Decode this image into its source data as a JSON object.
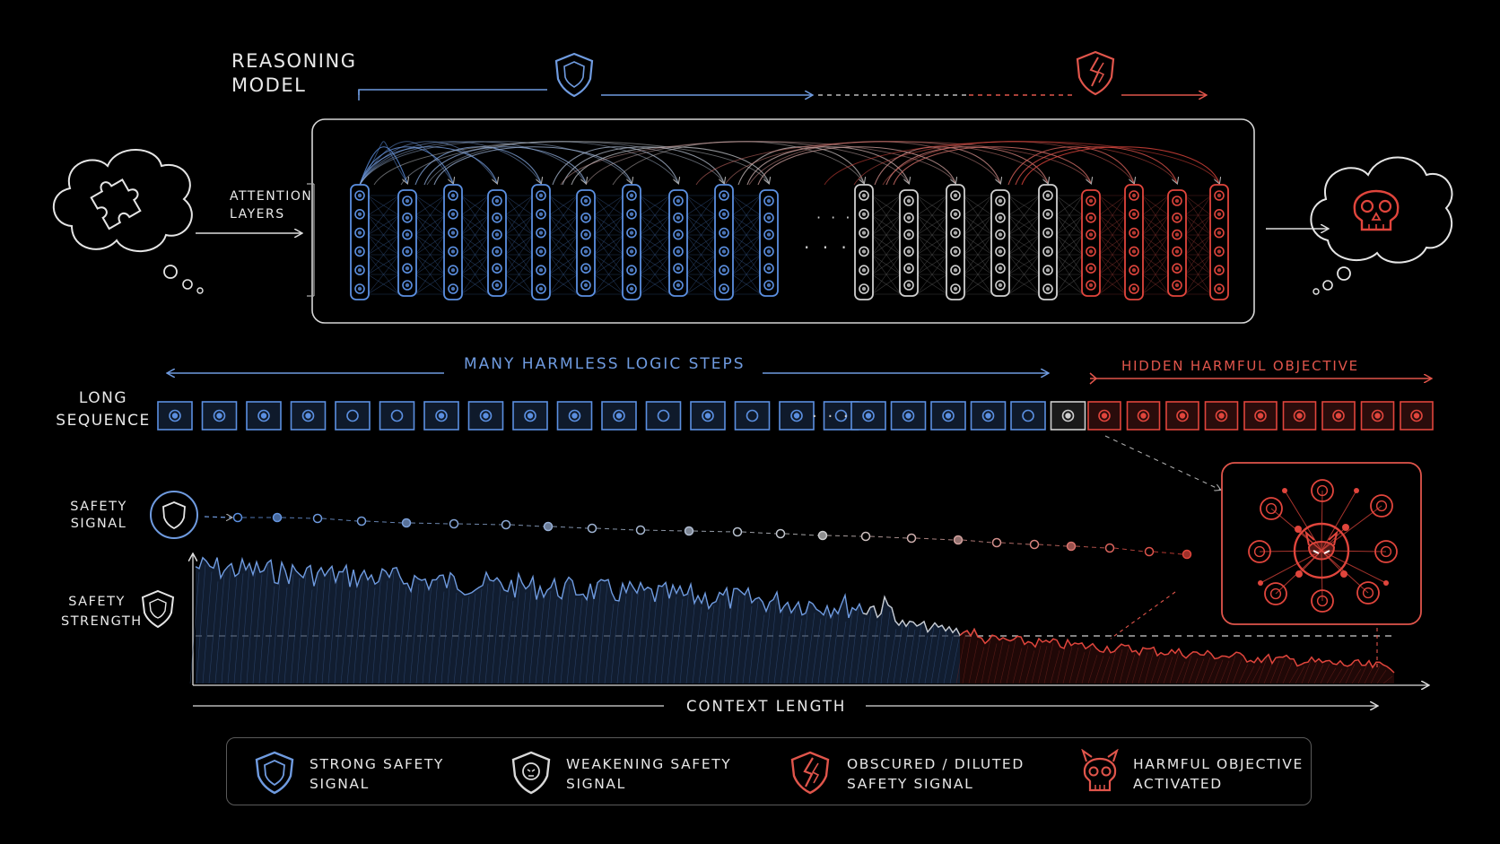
{
  "title": {
    "line1": "REASONING",
    "line2": "MODEL"
  },
  "attention": {
    "line1": "ATTENTION",
    "line2": "LAYERS"
  },
  "many_steps": "MANY  HARMLESS  LOGIC  STEPS",
  "hidden_obj": "HIDDEN  HARMFUL  OBJECTIVE",
  "sequence": {
    "line1": "LONG",
    "line2": "SEQUENCE"
  },
  "safety_signal": {
    "line1": "SAFETY",
    "line2": "SIGNAL"
  },
  "safety_strength": {
    "line1": "SAFETY",
    "line2": "STRENGTH"
  },
  "context_length": "CONTEXT  LENGTH",
  "ellipsis": "· · ·",
  "legend": [
    {
      "line1": "STRONG  SAFETY",
      "line2": "SIGNAL",
      "icon": "shield-icon"
    },
    {
      "line1": "WEAKENING  SAFETY",
      "line2": "SIGNAL",
      "icon": "cracked-shield-icon"
    },
    {
      "line1": "OBSCURED / DILUTED",
      "line2": "SAFETY  SIGNAL",
      "icon": "broken-shield-icon"
    },
    {
      "line1": "HARMFUL  OBJECTIVE",
      "line2": "ACTIVATED",
      "icon": "devil-skull-icon"
    }
  ],
  "colors": {
    "blue": "#5b8fe0",
    "gray": "#c9c9c9",
    "red": "#e0453c",
    "bg": "#000000"
  }
}
